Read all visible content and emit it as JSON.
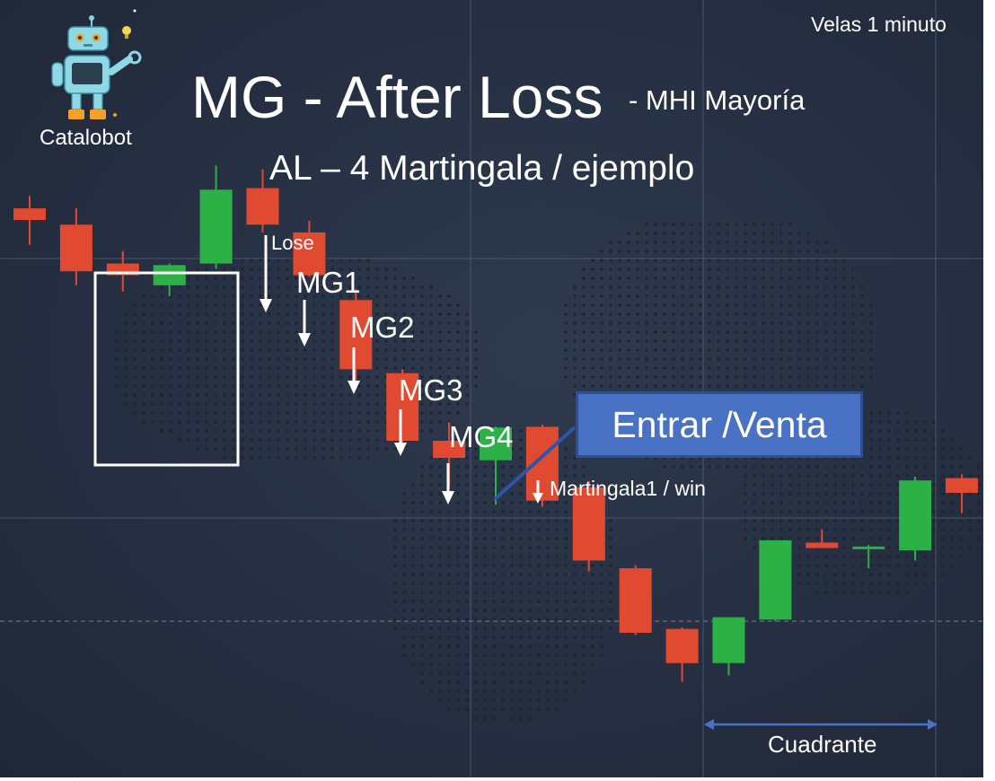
{
  "header": {
    "title": "MG - After Loss",
    "subtitle": "- MHI Mayoría",
    "secondary_title": "AL – 4 Martingala / ejemplo",
    "timeframe": "Velas 1 minuto"
  },
  "logo": {
    "name": "Catalobot",
    "icon": "robot-icon"
  },
  "annotations": {
    "lose": "Lose",
    "mg1": "MG1",
    "mg2": "MG2",
    "mg3": "MG3",
    "mg4": "MG4",
    "win": "Martingala1 / win",
    "entry": "Entrar /Venta",
    "quadrant": "Cuadrante"
  },
  "colors": {
    "bearish": "#e04a30",
    "bullish": "#2db146",
    "background": "#262f42",
    "callout": "#4a72c4",
    "quadrant_arrow": "#4a72c4"
  },
  "chart_data": {
    "type": "candlestick",
    "ylim": [
      0,
      100
    ],
    "grid": true,
    "candles": [
      {
        "open": 73.2,
        "high": 74.8,
        "low": 68.5,
        "close": 71.7
      },
      {
        "open": 71.1,
        "high": 73.2,
        "low": 63.3,
        "close": 65.1
      },
      {
        "open": 66.1,
        "high": 67.7,
        "low": 62.5,
        "close": 64.6
      },
      {
        "open": 63.3,
        "high": 66.1,
        "low": 61.9,
        "close": 65.9
      },
      {
        "open": 66.1,
        "high": 78.7,
        "low": 65.4,
        "close": 75.6
      },
      {
        "open": 75.8,
        "high": 78.2,
        "low": 70.1,
        "close": 71.1
      },
      {
        "open": 70.1,
        "high": 71.6,
        "low": 64.4,
        "close": 64.6
      },
      {
        "open": 61.4,
        "high": 62.8,
        "low": 50.8,
        "close": 52.5
      },
      {
        "open": 52.0,
        "high": 52.5,
        "low": 41.9,
        "close": 43.3
      },
      {
        "open": 43.3,
        "high": 45.7,
        "low": 37.4,
        "close": 41.1
      },
      {
        "open": 40.8,
        "high": 45.1,
        "low": 35.1,
        "close": 45.0
      },
      {
        "open": 45.1,
        "high": 45.4,
        "low": 34.8,
        "close": 35.6
      },
      {
        "open": 37.3,
        "high": 38.1,
        "low": 26.5,
        "close": 27.9
      },
      {
        "open": 26.9,
        "high": 27.3,
        "low": 18.3,
        "close": 18.6
      },
      {
        "open": 19.1,
        "high": 19.3,
        "low": 12.3,
        "close": 14.7
      },
      {
        "open": 14.7,
        "high": 20.6,
        "low": 13.1,
        "close": 20.6
      },
      {
        "open": 20.3,
        "high": 30.5,
        "low": 20.1,
        "close": 30.5
      },
      {
        "open": 30.2,
        "high": 31.9,
        "low": 29.5,
        "close": 29.5
      },
      {
        "open": 29.5,
        "high": 29.9,
        "low": 26.9,
        "close": 29.7
      },
      {
        "open": 29.2,
        "high": 38.7,
        "low": 27.9,
        "close": 38.2
      },
      {
        "open": 38.5,
        "high": 39.0,
        "low": 34.0,
        "close": 36.6
      }
    ]
  }
}
